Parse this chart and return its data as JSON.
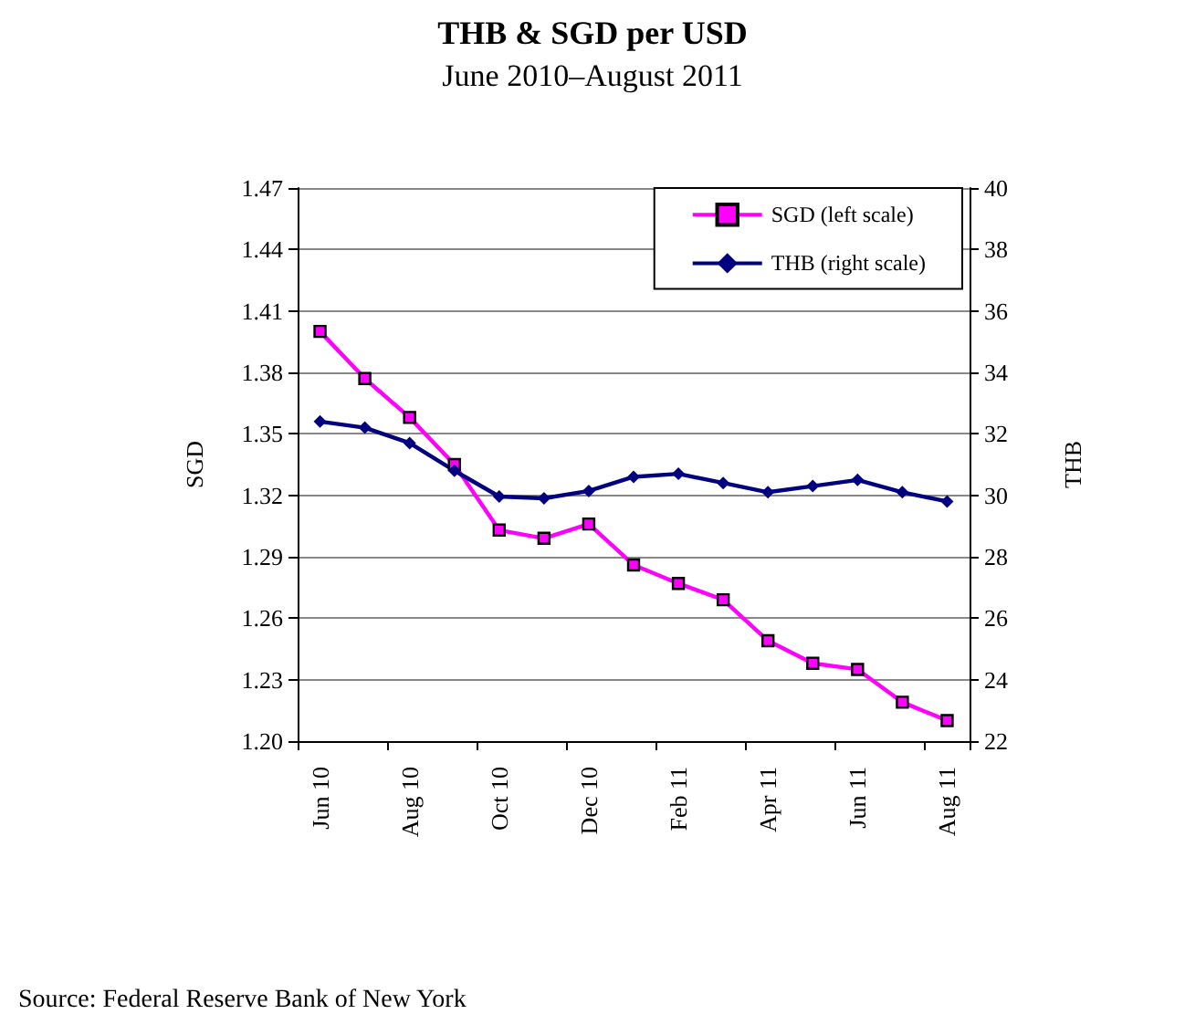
{
  "chart_data": {
    "type": "line",
    "title": "THB & SGD per USD",
    "subtitle": "June 2010–August 2011",
    "ylabel": "SGD",
    "y2label": "THB",
    "categories": [
      "Jun 10",
      null,
      "Aug 10",
      null,
      "Oct 10",
      null,
      "Dec 10",
      null,
      "Feb 11",
      null,
      "Apr 11",
      null,
      "Jun 11",
      null,
      "Aug 11"
    ],
    "series": [
      {
        "name": "SGD (left scale)",
        "color": "#ff00ff",
        "marker": "square",
        "values": [
          1.4,
          1.377,
          1.358,
          1.335,
          1.303,
          1.299,
          1.306,
          1.286,
          1.277,
          1.269,
          1.249,
          1.238,
          1.235,
          1.219,
          1.21
        ]
      },
      {
        "name": "THB (right scale)",
        "color": "#000080",
        "marker": "diamond",
        "axis": "y2",
        "values": [
          32.4,
          32.2,
          31.7,
          30.8,
          29.96,
          29.9,
          30.14,
          30.6,
          30.7,
          30.4,
          30.1,
          30.3,
          30.5,
          30.1,
          29.8
        ]
      }
    ],
    "ylim": [
      1.2,
      1.47
    ],
    "yticks": [
      {
        "value": 1.2,
        "label": "1.20"
      },
      {
        "value": 1.23,
        "label": "1.23"
      },
      {
        "value": 1.26,
        "label": "1.26"
      },
      {
        "value": 1.29,
        "label": "1.29"
      },
      {
        "value": 1.32,
        "label": "1.32"
      },
      {
        "value": 1.35,
        "label": "1.35"
      },
      {
        "value": 1.38,
        "label": "1.38"
      },
      {
        "value": 1.41,
        "label": "1.41"
      },
      {
        "value": 1.44,
        "label": "1.44"
      },
      {
        "value": 1.47,
        "label": "1.47"
      }
    ],
    "y2lim": [
      22,
      40
    ],
    "y2ticks": [
      22,
      24,
      26,
      28,
      30,
      32,
      34,
      36,
      38,
      40
    ],
    "grid": "y",
    "legend": "top right",
    "line_style": "solid",
    "annotations": [
      "Source: Federal Reserve Bank of New York"
    ]
  }
}
